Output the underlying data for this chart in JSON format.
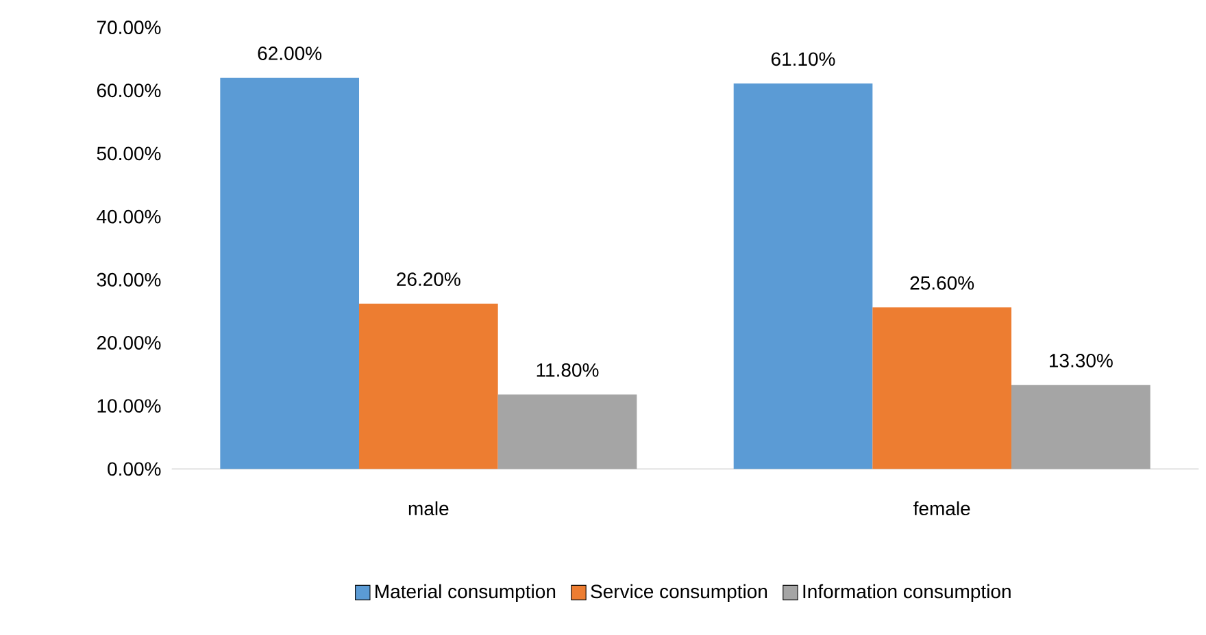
{
  "chart_data": {
    "type": "bar",
    "categories": [
      "male",
      "female"
    ],
    "series": [
      {
        "name": "Material consumption",
        "color": "#5b9bd5",
        "values": [
          62.0,
          61.1
        ],
        "value_labels": [
          "62.00%",
          "61.10%"
        ]
      },
      {
        "name": "Service consumption",
        "color": "#ed7d31",
        "values": [
          26.2,
          25.6
        ],
        "value_labels": [
          "26.20%",
          "25.60%"
        ]
      },
      {
        "name": "Information consumption",
        "color": "#a5a5a5",
        "values": [
          11.8,
          13.3
        ],
        "value_labels": [
          "11.80%",
          "13.30%"
        ]
      }
    ],
    "ylim": [
      0,
      70
    ],
    "yticks": [
      {
        "value": 0,
        "label": "0.00%"
      },
      {
        "value": 10,
        "label": "10.00%"
      },
      {
        "value": 20,
        "label": "20.00%"
      },
      {
        "value": 30,
        "label": "30.00%"
      },
      {
        "value": 40,
        "label": "40.00%"
      },
      {
        "value": 50,
        "label": "50.00%"
      },
      {
        "value": 60,
        "label": "60.00%"
      },
      {
        "value": 70,
        "label": "70.00%"
      }
    ],
    "legend": "bottom"
  }
}
